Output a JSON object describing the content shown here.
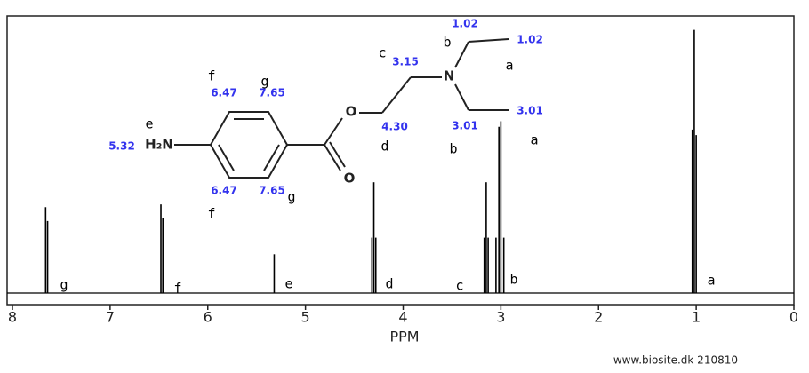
{
  "chart_data": {
    "type": "spectrum",
    "x_label": "PPM",
    "xlim": [
      8,
      0
    ],
    "xticks": [
      8,
      7,
      6,
      5,
      4,
      3,
      2,
      1,
      0
    ],
    "ylim": [
      0,
      1
    ],
    "x": [
      7.66,
      7.64,
      6.48,
      6.46,
      5.32,
      4.32,
      4.3,
      4.28,
      3.17,
      3.15,
      3.13,
      3.05,
      3.02,
      3.0,
      2.97,
      1.04,
      1.02,
      1.0
    ],
    "values": [
      0.31,
      0.26,
      0.32,
      0.27,
      0.14,
      0.2,
      0.4,
      0.2,
      0.2,
      0.4,
      0.2,
      0.2,
      0.6,
      0.62,
      0.2,
      0.59,
      0.95,
      0.57
    ],
    "color": "#000000",
    "peak_labels": [
      "g",
      "f",
      "e",
      "d",
      "c",
      "b",
      "a"
    ]
  },
  "structure": {
    "atoms": [
      "H₂N",
      "O",
      "O",
      "N"
    ],
    "shifts": [
      "5.32",
      "6.47",
      "7.65",
      "6.47",
      "7.65",
      "3.15",
      "4.30",
      "3.01",
      "1.02",
      "3.01",
      "1.02"
    ],
    "letters": [
      "e",
      "f",
      "g",
      "f",
      "g",
      "c",
      "d",
      "b",
      "a",
      "b",
      "a"
    ]
  },
  "watermark": "www.biosite.dk 210810"
}
